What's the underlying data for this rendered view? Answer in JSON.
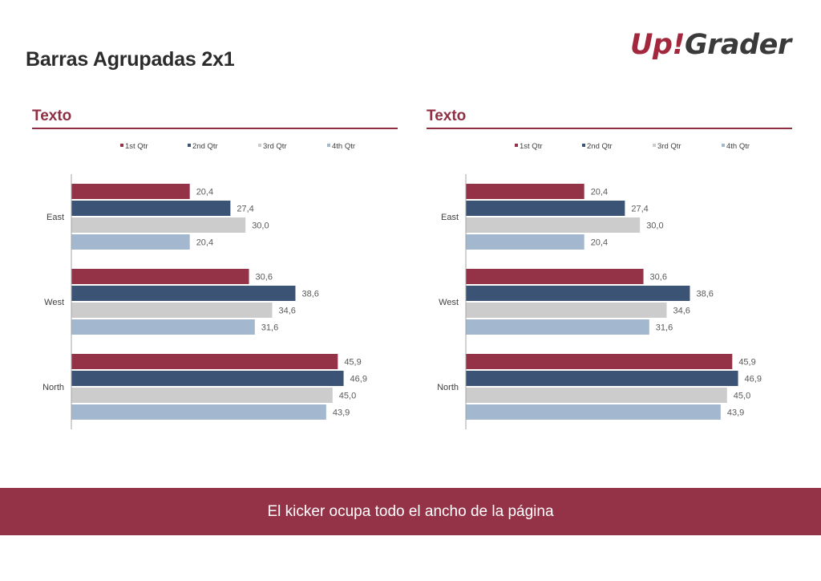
{
  "page": {
    "title": "Barras Agrupadas 2x1",
    "logo_part1": "Up!",
    "logo_part2": "Grader",
    "kicker": "El kicker ocupa todo el ancho de la página"
  },
  "colors": {
    "accent": "#943347",
    "series": [
      "#943347",
      "#3b5374",
      "#cccccc",
      "#a3b7cf"
    ]
  },
  "chart_data": [
    {
      "type": "bar",
      "orientation": "horizontal",
      "title": "Texto",
      "categories": [
        "East",
        "West",
        "North"
      ],
      "series": [
        {
          "name": "1st Qtr",
          "values": [
            20.4,
            30.6,
            45.9
          ],
          "labels": [
            "20,4",
            "30,6",
            "45,9"
          ]
        },
        {
          "name": "2nd Qtr",
          "values": [
            27.4,
            38.6,
            46.9
          ],
          "labels": [
            "27,4",
            "38,6",
            "46,9"
          ]
        },
        {
          "name": "3rd Qtr",
          "values": [
            30.0,
            34.6,
            45.0
          ],
          "labels": [
            "30,0",
            "34,6",
            "45,0"
          ]
        },
        {
          "name": "4th Qtr",
          "values": [
            20.4,
            31.6,
            43.9
          ],
          "labels": [
            "20,4",
            "31,6",
            "43,9"
          ]
        }
      ],
      "xlim": [
        0,
        50
      ],
      "legend": "top",
      "grid": false
    },
    {
      "type": "bar",
      "orientation": "horizontal",
      "title": "Texto",
      "categories": [
        "East",
        "West",
        "North"
      ],
      "series": [
        {
          "name": "1st Qtr",
          "values": [
            20.4,
            30.6,
            45.9
          ],
          "labels": [
            "20,4",
            "30,6",
            "45,9"
          ]
        },
        {
          "name": "2nd Qtr",
          "values": [
            27.4,
            38.6,
            46.9
          ],
          "labels": [
            "27,4",
            "38,6",
            "46,9"
          ]
        },
        {
          "name": "3rd Qtr",
          "values": [
            30.0,
            34.6,
            45.0
          ],
          "labels": [
            "30,0",
            "34,6",
            "45,0"
          ]
        },
        {
          "name": "4th Qtr",
          "values": [
            20.4,
            31.6,
            43.9
          ],
          "labels": [
            "20,4",
            "31,6",
            "43,9"
          ]
        }
      ],
      "xlim": [
        0,
        50
      ],
      "legend": "top",
      "grid": false
    }
  ]
}
